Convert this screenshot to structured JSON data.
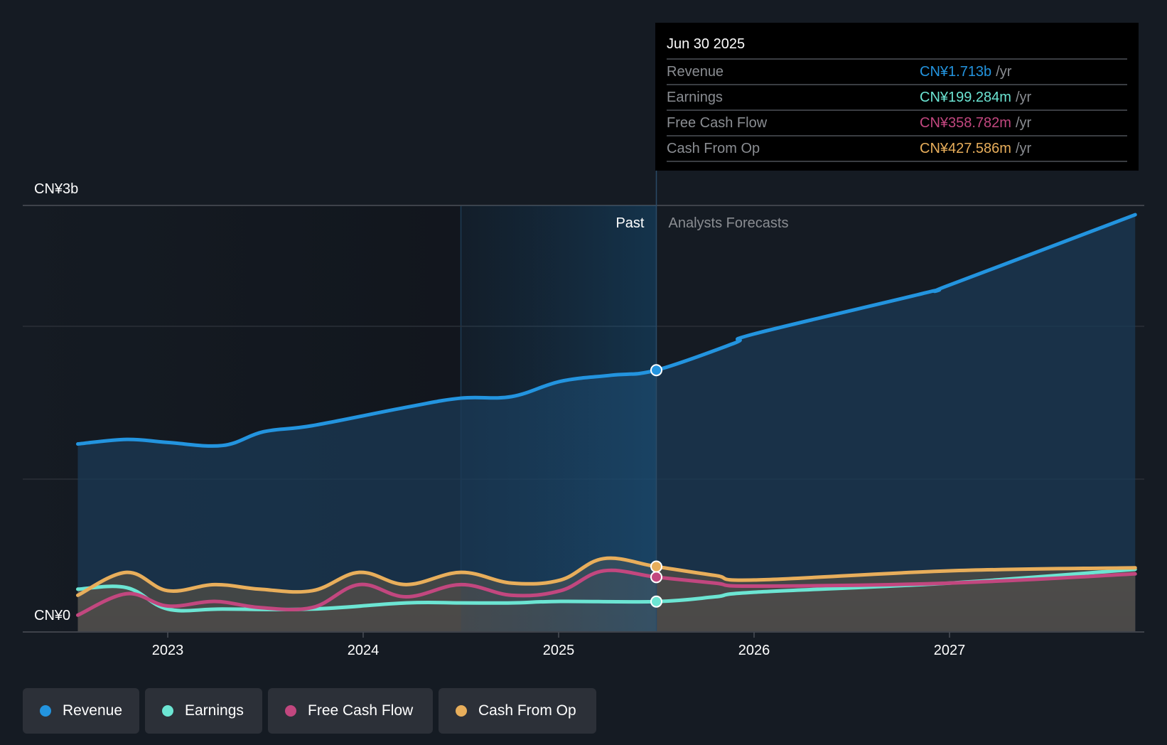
{
  "tooltip": {
    "date": "Jun 30 2025",
    "rows": [
      {
        "label": "Revenue",
        "value": "CN¥1.713b",
        "unit": "/yr",
        "color": "#2394df"
      },
      {
        "label": "Earnings",
        "value": "CN¥199.284m",
        "unit": "/yr",
        "color": "#6ce5d3"
      },
      {
        "label": "Free Cash Flow",
        "value": "CN¥358.782m",
        "unit": "/yr",
        "color": "#c2477f"
      },
      {
        "label": "Cash From Op",
        "value": "CN¥427.586m",
        "unit": "/yr",
        "color": "#e8ae5b"
      }
    ]
  },
  "legend": [
    {
      "label": "Revenue",
      "color": "#2394df"
    },
    {
      "label": "Earnings",
      "color": "#6ce5d3"
    },
    {
      "label": "Free Cash Flow",
      "color": "#c2477f"
    },
    {
      "label": "Cash From Op",
      "color": "#e8ae5b"
    }
  ],
  "chart_data": {
    "type": "area",
    "title": "",
    "xlabel": "",
    "ylabel": "",
    "y_unit": "CN¥ billions",
    "ylim": [
      0,
      2.8
    ],
    "y_tick_labels": [
      {
        "value": 2.8,
        "label": "CN¥3b"
      },
      {
        "value": 0,
        "label": "CN¥0"
      }
    ],
    "gridlines_b": [
      1,
      2
    ],
    "x_ticks": [
      2023,
      2024,
      2025,
      2026,
      2027
    ],
    "xlim": [
      2022.54,
      2027.95
    ],
    "past_label": "Past",
    "forecast_label": "Analysts Forecasts",
    "highlight_start": 2024.5,
    "divider_x": 2025.5,
    "series": [
      {
        "name": "Revenue",
        "color": "#2394df",
        "points": [
          [
            2022.54,
            1.23
          ],
          [
            2022.79,
            1.26
          ],
          [
            2023.0,
            1.24
          ],
          [
            2023.28,
            1.22
          ],
          [
            2023.49,
            1.31
          ],
          [
            2023.74,
            1.35
          ],
          [
            2024.22,
            1.47
          ],
          [
            2024.5,
            1.53
          ],
          [
            2024.76,
            1.54
          ],
          [
            2025.01,
            1.64
          ],
          [
            2025.27,
            1.68
          ],
          [
            2025.5,
            1.713
          ],
          [
            2025.9,
            1.89
          ],
          [
            2026.0,
            1.95
          ],
          [
            2026.88,
            2.22
          ],
          [
            2027.0,
            2.27
          ],
          [
            2027.95,
            2.73
          ]
        ]
      },
      {
        "name": "Earnings",
        "color": "#6ce5d3",
        "points": [
          [
            2022.54,
            0.28
          ],
          [
            2022.79,
            0.29
          ],
          [
            2023.0,
            0.15
          ],
          [
            2023.28,
            0.15
          ],
          [
            2023.74,
            0.15
          ],
          [
            2024.22,
            0.19
          ],
          [
            2024.5,
            0.19
          ],
          [
            2024.76,
            0.19
          ],
          [
            2025.01,
            0.2
          ],
          [
            2025.5,
            0.199
          ],
          [
            2025.8,
            0.23
          ],
          [
            2026.0,
            0.26
          ],
          [
            2027.0,
            0.32
          ],
          [
            2027.95,
            0.41
          ]
        ]
      },
      {
        "name": "Free Cash Flow",
        "color": "#c2477f",
        "points": [
          [
            2022.54,
            0.11
          ],
          [
            2022.79,
            0.25
          ],
          [
            2023.0,
            0.17
          ],
          [
            2023.24,
            0.2
          ],
          [
            2023.47,
            0.16
          ],
          [
            2023.74,
            0.16
          ],
          [
            2023.98,
            0.31
          ],
          [
            2024.22,
            0.23
          ],
          [
            2024.5,
            0.31
          ],
          [
            2024.76,
            0.24
          ],
          [
            2025.01,
            0.27
          ],
          [
            2025.23,
            0.4
          ],
          [
            2025.5,
            0.359
          ],
          [
            2025.8,
            0.32
          ],
          [
            2026.0,
            0.3
          ],
          [
            2027.0,
            0.32
          ],
          [
            2027.95,
            0.38
          ]
        ]
      },
      {
        "name": "Cash From Op",
        "color": "#e8ae5b",
        "points": [
          [
            2022.54,
            0.24
          ],
          [
            2022.79,
            0.39
          ],
          [
            2023.0,
            0.27
          ],
          [
            2023.24,
            0.31
          ],
          [
            2023.47,
            0.28
          ],
          [
            2023.74,
            0.27
          ],
          [
            2023.98,
            0.39
          ],
          [
            2024.22,
            0.31
          ],
          [
            2024.5,
            0.39
          ],
          [
            2024.76,
            0.32
          ],
          [
            2025.01,
            0.34
          ],
          [
            2025.23,
            0.48
          ],
          [
            2025.5,
            0.428
          ],
          [
            2025.8,
            0.37
          ],
          [
            2026.0,
            0.34
          ],
          [
            2027.0,
            0.4
          ],
          [
            2027.95,
            0.42
          ]
        ]
      }
    ]
  }
}
